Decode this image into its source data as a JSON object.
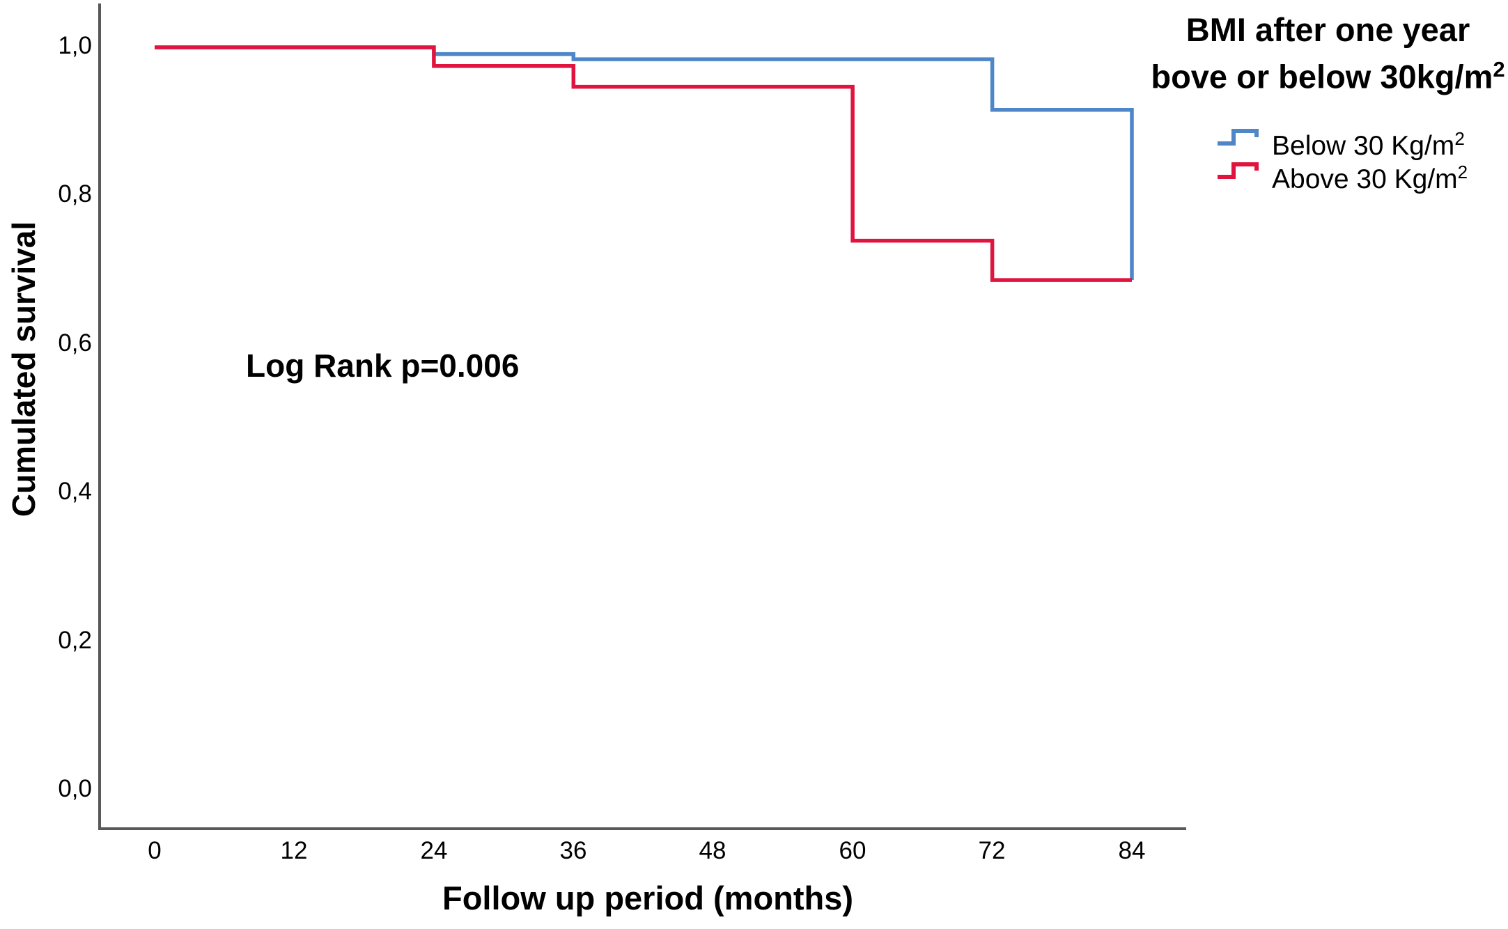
{
  "figure": {
    "background": "#FFFFFF",
    "axis_color": "#595959"
  },
  "annotation": {
    "text": "Log Rank p=0.006"
  },
  "axes": {
    "y_title": "Cumulated survival",
    "x_title": "Follow up period (months)"
  },
  "legend": {
    "title_line1": "BMI after one year",
    "title_line2": "bove or below 30kg/m",
    "title_sup": "2",
    "items": [
      {
        "label": "Below 30 Kg/m",
        "sup": "2",
        "color": "#4E86C8"
      },
      {
        "label": "Above 30 Kg/m",
        "sup": "2",
        "color": "#E0143F"
      }
    ]
  },
  "chart_data": {
    "type": "line",
    "subtype": "kaplan-meier-step",
    "title": "",
    "xlabel": "Follow up period (months)",
    "ylabel": "Cumulated survival",
    "annotation": "Log Rank p=0.006",
    "legend_title": "BMI after one year bove or below 30kg/m2",
    "legend_position": "top-right",
    "grid": false,
    "xlim": [
      0,
      88
    ],
    "ylim": [
      0.0,
      1.05
    ],
    "x_ticks": [
      0,
      12,
      24,
      36,
      48,
      60,
      72,
      84
    ],
    "x_tick_labels": [
      "0",
      "12",
      "24",
      "36",
      "48",
      "60",
      "72",
      "84"
    ],
    "y_ticks_top_to_bottom": [
      1.0,
      0.8,
      0.6,
      0.4,
      0.2,
      0.0
    ],
    "y_tick_labels": [
      "1,0",
      "0,8",
      "0,6",
      "0,4",
      "0,2",
      "0,0"
    ],
    "series": [
      {
        "name": "Below 30 Kg/m2",
        "color": "#4E86C8",
        "points": [
          [
            0,
            1.0
          ],
          [
            24,
            1.0
          ],
          [
            24,
            0.991
          ],
          [
            36,
            0.991
          ],
          [
            36,
            0.984
          ],
          [
            72,
            0.984
          ],
          [
            72,
            0.916
          ],
          [
            84,
            0.916
          ],
          [
            84,
            0.687
          ]
        ]
      },
      {
        "name": "Above 30 Kg/m2",
        "color": "#E0143F",
        "points": [
          [
            0,
            1.0
          ],
          [
            24,
            1.0
          ],
          [
            24,
            0.975
          ],
          [
            36,
            0.975
          ],
          [
            36,
            0.947
          ],
          [
            60,
            0.947
          ],
          [
            60,
            0.74
          ],
          [
            72,
            0.74
          ],
          [
            72,
            0.687
          ],
          [
            84,
            0.687
          ]
        ]
      }
    ]
  }
}
